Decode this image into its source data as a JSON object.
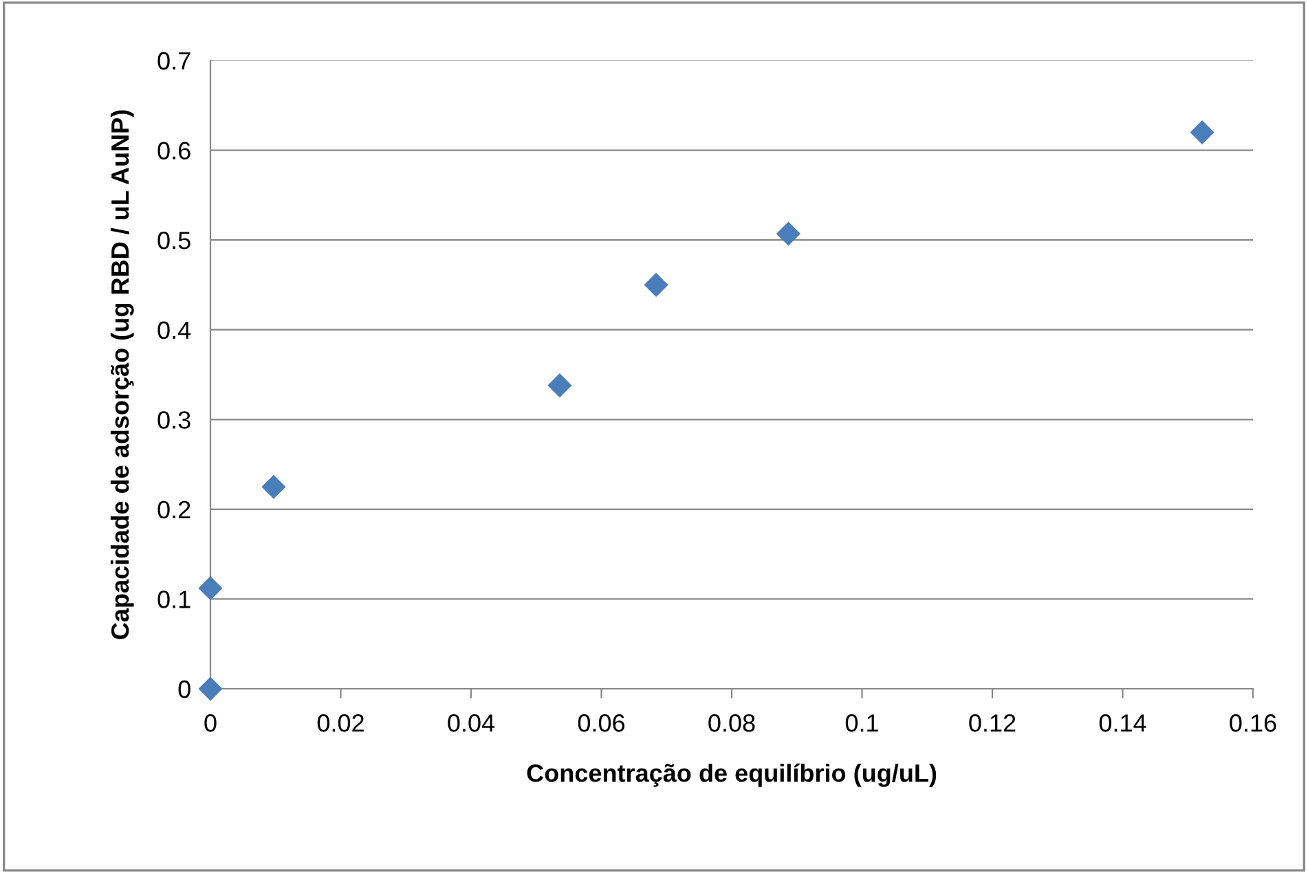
{
  "chart_data": {
    "type": "scatter",
    "xlabel": "Concentração de equilíbrio (ug/uL)",
    "ylabel": "Capacidade de adsorção (ug RBD / uL AuNP)",
    "x": [
      0,
      0,
      0.0097,
      0.0536,
      0.0684,
      0.0887,
      0.1522
    ],
    "series": [
      {
        "color": "#4a7ebb",
        "values": [
          0,
          0.112,
          0.225,
          0.338,
          0.45,
          0.507,
          0.62
        ]
      }
    ],
    "xlim": [
      0,
      0.16
    ],
    "xticks": [
      0,
      0.02,
      0.04,
      0.06,
      0.08,
      0.1,
      0.12,
      0.14,
      0.16
    ],
    "ylim": [
      0,
      0.7
    ],
    "yticks": [
      0,
      0.1,
      0.2,
      0.3,
      0.4,
      0.5,
      0.6,
      0.7
    ],
    "grid": "y",
    "legend": false,
    "marker": "diamond"
  }
}
